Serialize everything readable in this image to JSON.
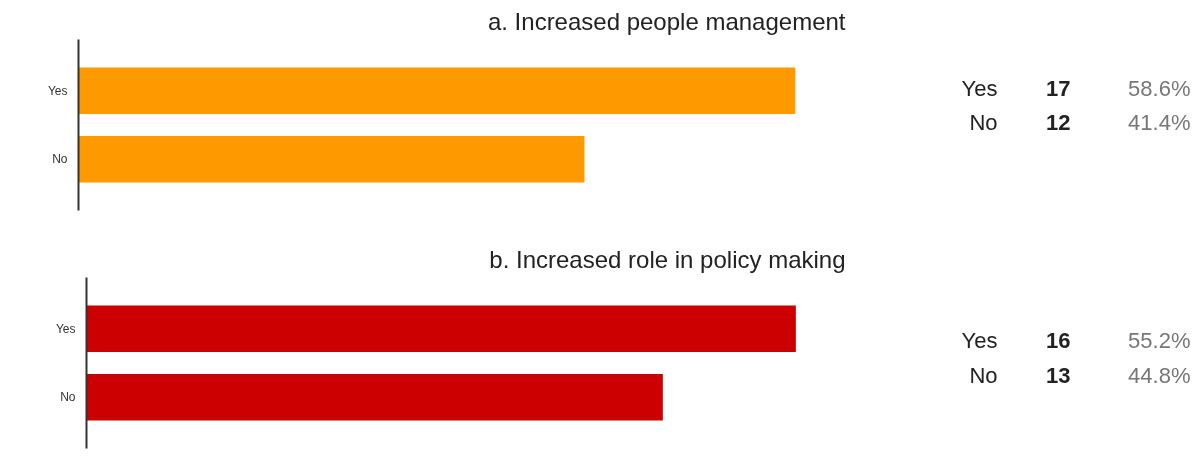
{
  "chart_data": [
    {
      "type": "bar",
      "orientation": "horizontal",
      "title": "a. Increased people management",
      "categories": [
        "Yes",
        "No"
      ],
      "values": [
        17,
        12
      ],
      "color": "#ff9900",
      "data_labels": true,
      "grid": false,
      "annotations": [
        "58.6%",
        "41.4%"
      ]
    },
    {
      "type": "bar",
      "orientation": "horizontal",
      "title": "b. Increased role in policy making",
      "categories": [
        "Yes",
        "No"
      ],
      "values": [
        16,
        13
      ],
      "color": "#cc0000",
      "data_labels": true,
      "grid": false,
      "annotations": [
        "55.2%",
        "44.8%"
      ]
    }
  ]
}
